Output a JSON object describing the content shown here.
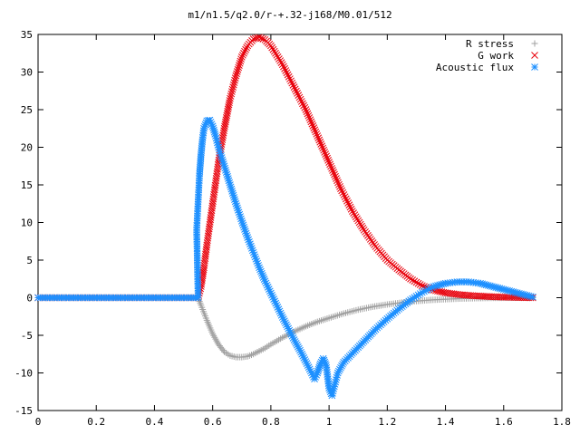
{
  "chart_data": {
    "type": "scatter",
    "title": "m1/n1.5/q2.0/r-+.32-j168/M0.01/512",
    "xlabel": "",
    "ylabel": "",
    "xlim": [
      0,
      1.8
    ],
    "ylim": [
      -15,
      35
    ],
    "x_ticks": [
      0,
      0.2,
      0.4,
      0.6,
      0.8,
      1,
      1.2,
      1.4,
      1.6,
      1.8
    ],
    "x_tick_labels": [
      "0",
      "0.2",
      "0.4",
      "0.6",
      "0.8",
      "1",
      "1.2",
      "1.4",
      "1.6",
      "1.8"
    ],
    "y_ticks": [
      -15,
      -10,
      -5,
      0,
      5,
      10,
      15,
      20,
      25,
      30,
      35
    ],
    "y_tick_labels": [
      "-15",
      "-10",
      "-5",
      "0",
      "5",
      "10",
      "15",
      "20",
      "25",
      "30",
      "35"
    ],
    "grid": false,
    "legend_position": "top-right",
    "series": [
      {
        "name": "R stress",
        "marker": "plus",
        "color": "#a0a0a0",
        "points": [
          [
            0.0,
            0
          ],
          [
            0.55,
            0
          ],
          [
            0.56,
            -1.0
          ],
          [
            0.58,
            -3.0
          ],
          [
            0.6,
            -4.8
          ],
          [
            0.62,
            -6.2
          ],
          [
            0.64,
            -7.2
          ],
          [
            0.66,
            -7.7
          ],
          [
            0.68,
            -7.9
          ],
          [
            0.7,
            -7.9
          ],
          [
            0.72,
            -7.8
          ],
          [
            0.74,
            -7.5
          ],
          [
            0.76,
            -7.1
          ],
          [
            0.78,
            -6.7
          ],
          [
            0.8,
            -6.2
          ],
          [
            0.84,
            -5.3
          ],
          [
            0.88,
            -4.5
          ],
          [
            0.92,
            -3.8
          ],
          [
            0.96,
            -3.2
          ],
          [
            1.0,
            -2.7
          ],
          [
            1.05,
            -2.1
          ],
          [
            1.1,
            -1.6
          ],
          [
            1.15,
            -1.2
          ],
          [
            1.2,
            -0.9
          ],
          [
            1.25,
            -0.65
          ],
          [
            1.3,
            -0.45
          ],
          [
            1.35,
            -0.3
          ],
          [
            1.4,
            -0.2
          ],
          [
            1.45,
            -0.12
          ],
          [
            1.5,
            -0.07
          ],
          [
            1.55,
            -0.03
          ],
          [
            1.6,
            -0.01
          ],
          [
            1.65,
            0
          ],
          [
            1.7,
            0
          ]
        ]
      },
      {
        "name": "G work",
        "marker": "cross",
        "color": "#e8000b",
        "points": [
          [
            0.0,
            0
          ],
          [
            0.55,
            0
          ],
          [
            0.56,
            1.5
          ],
          [
            0.57,
            4.0
          ],
          [
            0.58,
            7.0
          ],
          [
            0.6,
            12.5
          ],
          [
            0.62,
            18.0
          ],
          [
            0.64,
            22.5
          ],
          [
            0.66,
            26.5
          ],
          [
            0.68,
            29.5
          ],
          [
            0.7,
            32.0
          ],
          [
            0.72,
            33.5
          ],
          [
            0.74,
            34.4
          ],
          [
            0.76,
            34.6
          ],
          [
            0.78,
            34.3
          ],
          [
            0.8,
            33.5
          ],
          [
            0.84,
            31.0
          ],
          [
            0.88,
            28.0
          ],
          [
            0.92,
            25.0
          ],
          [
            0.96,
            21.5
          ],
          [
            1.0,
            18.0
          ],
          [
            1.04,
            14.5
          ],
          [
            1.08,
            11.5
          ],
          [
            1.12,
            9.0
          ],
          [
            1.16,
            6.8
          ],
          [
            1.2,
            5.0
          ],
          [
            1.24,
            3.7
          ],
          [
            1.28,
            2.5
          ],
          [
            1.32,
            1.6
          ],
          [
            1.36,
            1.0
          ],
          [
            1.4,
            0.65
          ],
          [
            1.45,
            0.4
          ],
          [
            1.5,
            0.25
          ],
          [
            1.55,
            0.15
          ],
          [
            1.6,
            0.08
          ],
          [
            1.65,
            0.03
          ],
          [
            1.7,
            0.0
          ]
        ]
      },
      {
        "name": "Acoustic flux",
        "marker": "star",
        "color": "#1e90ff",
        "points": [
          [
            0.0,
            0
          ],
          [
            0.55,
            0
          ],
          [
            0.545,
            9.0
          ],
          [
            0.555,
            16.5
          ],
          [
            0.56,
            19.0
          ],
          [
            0.565,
            21.0
          ],
          [
            0.57,
            22.5
          ],
          [
            0.58,
            23.5
          ],
          [
            0.59,
            23.6
          ],
          [
            0.6,
            22.8
          ],
          [
            0.61,
            21.5
          ],
          [
            0.62,
            20.0
          ],
          [
            0.64,
            17.5
          ],
          [
            0.66,
            15.0
          ],
          [
            0.68,
            12.5
          ],
          [
            0.7,
            10.2
          ],
          [
            0.72,
            8.0
          ],
          [
            0.74,
            6.0
          ],
          [
            0.76,
            4.0
          ],
          [
            0.78,
            2.2
          ],
          [
            0.8,
            0.6
          ],
          [
            0.82,
            -1.0
          ],
          [
            0.84,
            -2.6
          ],
          [
            0.86,
            -4.1
          ],
          [
            0.88,
            -5.6
          ],
          [
            0.9,
            -7.0
          ],
          [
            0.92,
            -8.5
          ],
          [
            0.94,
            -10.0
          ],
          [
            0.95,
            -10.8
          ],
          [
            0.96,
            -10.0
          ],
          [
            0.97,
            -8.8
          ],
          [
            0.98,
            -8.1
          ],
          [
            0.99,
            -9.0
          ],
          [
            1.0,
            -12.0
          ],
          [
            1.01,
            -13.0
          ],
          [
            1.02,
            -11.5
          ],
          [
            1.03,
            -10.0
          ],
          [
            1.05,
            -8.6
          ],
          [
            1.08,
            -7.4
          ],
          [
            1.12,
            -5.8
          ],
          [
            1.16,
            -4.2
          ],
          [
            1.2,
            -2.8
          ],
          [
            1.24,
            -1.5
          ],
          [
            1.28,
            -0.3
          ],
          [
            1.32,
            0.7
          ],
          [
            1.36,
            1.5
          ],
          [
            1.4,
            1.9
          ],
          [
            1.44,
            2.1
          ],
          [
            1.48,
            2.1
          ],
          [
            1.52,
            1.9
          ],
          [
            1.56,
            1.5
          ],
          [
            1.6,
            1.1
          ],
          [
            1.64,
            0.7
          ],
          [
            1.68,
            0.3
          ],
          [
            1.7,
            0.1
          ]
        ]
      }
    ]
  }
}
